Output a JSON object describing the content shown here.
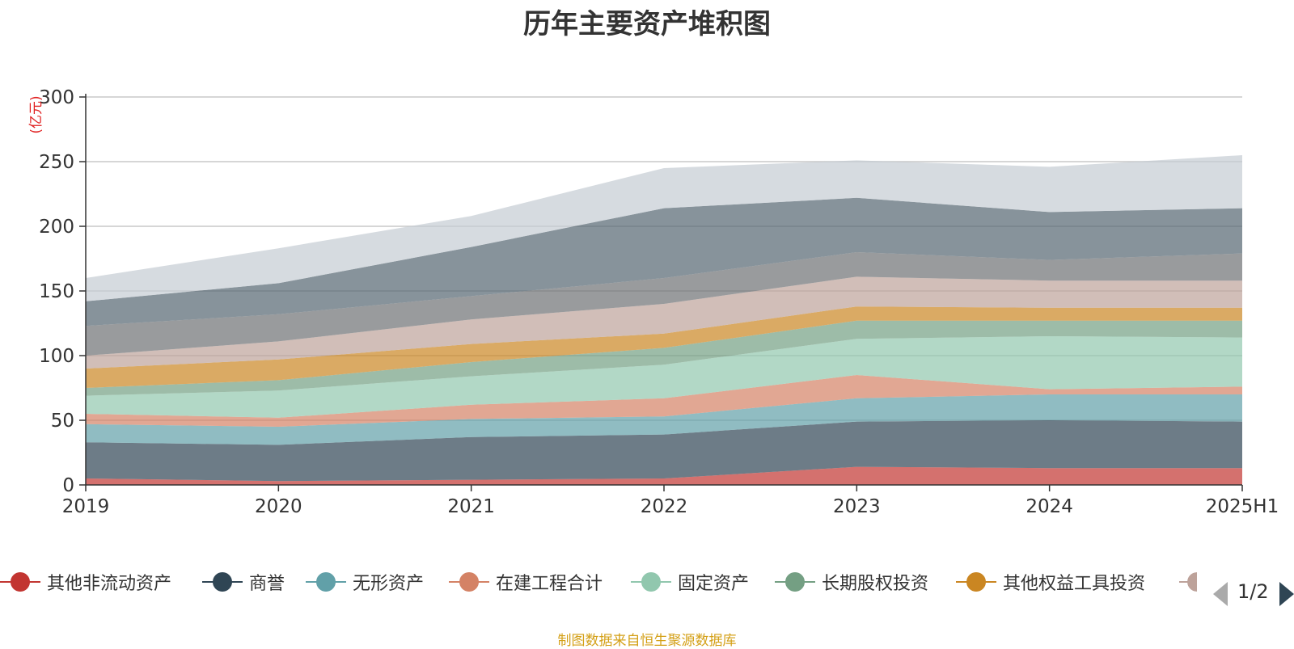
{
  "chart_data": {
    "type": "area",
    "title": "历年主要资产堆积图",
    "ylabel": "(亿元)",
    "xlabel": "",
    "categories": [
      "2019",
      "2020",
      "2021",
      "2022",
      "2023",
      "2024",
      "2025H1"
    ],
    "ylim": [
      0,
      300
    ],
    "yticks": [
      0,
      50,
      100,
      150,
      200,
      250,
      300
    ],
    "stacked": true,
    "grid": true,
    "legend_position": "bottom",
    "series": [
      {
        "name": "其他非流动资产",
        "color": "#c23531",
        "values": [
          5,
          3,
          4,
          5,
          14,
          13,
          13
        ]
      },
      {
        "name": "商誉",
        "color": "#2f4554",
        "values": [
          28,
          28,
          33,
          34,
          35,
          37,
          36
        ]
      },
      {
        "name": "无形资产",
        "color": "#61a0a8",
        "values": [
          14,
          14,
          14,
          14,
          18,
          20,
          21
        ]
      },
      {
        "name": "在建工程合计",
        "color": "#d48265",
        "values": [
          8,
          7,
          11,
          14,
          18,
          4,
          6
        ]
      },
      {
        "name": "固定资产",
        "color": "#91c7ae",
        "values": [
          14,
          21,
          22,
          26,
          28,
          41,
          38
        ]
      },
      {
        "name": "长期股权投资",
        "color": "#749f83",
        "values": [
          6,
          8,
          11,
          13,
          14,
          12,
          13
        ]
      },
      {
        "name": "其他权益工具投资",
        "color": "#ca8622",
        "values": [
          15,
          16,
          14,
          11,
          11,
          10,
          10
        ]
      },
      {
        "name": null,
        "color": "#bda29a",
        "values": [
          10,
          14,
          19,
          23,
          23,
          21,
          21
        ]
      },
      {
        "name": null,
        "color": "#6e7074",
        "values": [
          23,
          21,
          18,
          20,
          19,
          16,
          21
        ]
      },
      {
        "name": null,
        "color": "#546570",
        "values": [
          19,
          24,
          38,
          54,
          42,
          37,
          35
        ]
      },
      {
        "name": null,
        "color": "#c4ccd3",
        "values": [
          18,
          27,
          24,
          31,
          29,
          35,
          41
        ]
      }
    ]
  },
  "legend": {
    "items": [
      {
        "label": "其他非流动资产",
        "color": "#c23531"
      },
      {
        "label": "商誉",
        "color": "#2f4554"
      },
      {
        "label": "无形资产",
        "color": "#61a0a8"
      },
      {
        "label": "在建工程合计",
        "color": "#d48265"
      },
      {
        "label": "固定资产",
        "color": "#91c7ae"
      },
      {
        "label": "长期股权投资",
        "color": "#749f83"
      },
      {
        "label": "其他权益工具投资",
        "color": "#ca8622"
      }
    ],
    "page_indicator": "1/2"
  },
  "footer": {
    "source_note": "制图数据来自恒生聚源数据库"
  }
}
